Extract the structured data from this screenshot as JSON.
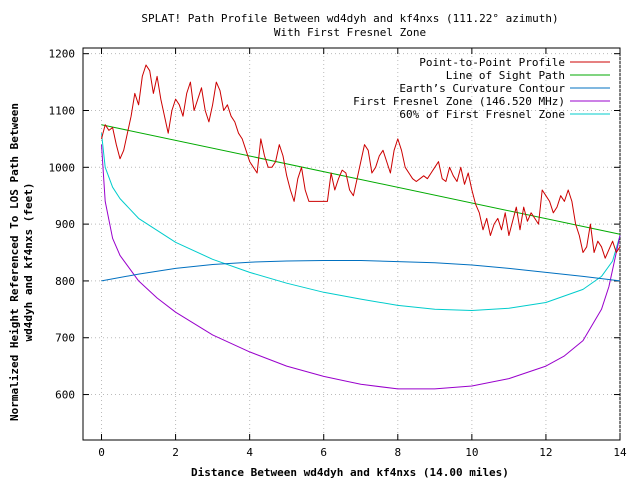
{
  "chart_data": {
    "type": "line",
    "title_line1": "SPLAT! Path Profile Between wd4dyh and kf4nxs (111.22° azimuth)",
    "title_line2": "With First Fresnel Zone",
    "xlabel": "Distance Between wd4dyh and kf4nxs (14.00 miles)",
    "ylabel_line1": "Normalized Height Referenced To LOS Path Between",
    "ylabel_line2": "wd4dyh and kf4nxs (feet)",
    "xlim": [
      -0.5,
      14
    ],
    "ylim": [
      520,
      1210
    ],
    "x_ticks": [
      0,
      2,
      4,
      6,
      8,
      10,
      12,
      14
    ],
    "x_tick_labels": [
      "0",
      "2",
      "4",
      "6",
      "8",
      "10",
      "12",
      "14"
    ],
    "y_ticks": [
      600,
      700,
      800,
      900,
      1000,
      1100,
      1200
    ],
    "y_tick_labels": [
      "600",
      "700",
      "800",
      "900",
      "1000",
      "1100",
      "1200"
    ],
    "grid": true,
    "legend_position": "top-right",
    "series": [
      {
        "name": "Point-to-Point Profile",
        "color": "#cc0000",
        "x": [
          0.0,
          0.1,
          0.2,
          0.3,
          0.4,
          0.5,
          0.6,
          0.7,
          0.8,
          0.9,
          1.0,
          1.1,
          1.2,
          1.3,
          1.4,
          1.5,
          1.6,
          1.7,
          1.8,
          1.9,
          2.0,
          2.1,
          2.2,
          2.3,
          2.4,
          2.5,
          2.6,
          2.7,
          2.8,
          2.9,
          3.0,
          3.1,
          3.2,
          3.3,
          3.4,
          3.5,
          3.6,
          3.7,
          3.8,
          3.9,
          4.0,
          4.1,
          4.2,
          4.3,
          4.4,
          4.5,
          4.6,
          4.7,
          4.8,
          4.9,
          5.0,
          5.1,
          5.2,
          5.3,
          5.4,
          5.5,
          5.6,
          5.7,
          5.8,
          5.9,
          6.0,
          6.1,
          6.2,
          6.3,
          6.4,
          6.5,
          6.6,
          6.7,
          6.8,
          6.9,
          7.0,
          7.1,
          7.2,
          7.3,
          7.4,
          7.5,
          7.6,
          7.7,
          7.8,
          7.9,
          8.0,
          8.1,
          8.2,
          8.3,
          8.4,
          8.5,
          8.6,
          8.7,
          8.8,
          8.9,
          9.0,
          9.1,
          9.2,
          9.3,
          9.4,
          9.5,
          9.6,
          9.7,
          9.8,
          9.9,
          10.0,
          10.1,
          10.2,
          10.3,
          10.4,
          10.5,
          10.6,
          10.7,
          10.8,
          10.9,
          11.0,
          11.1,
          11.2,
          11.3,
          11.4,
          11.5,
          11.6,
          11.7,
          11.8,
          11.9,
          12.0,
          12.1,
          12.2,
          12.3,
          12.4,
          12.5,
          12.6,
          12.7,
          12.8,
          12.9,
          13.0,
          13.1,
          13.2,
          13.3,
          13.4,
          13.5,
          13.6,
          13.7,
          13.8,
          13.9,
          14.0
        ],
        "y": [
          1050,
          1075,
          1065,
          1070,
          1040,
          1015,
          1030,
          1060,
          1090,
          1130,
          1110,
          1160,
          1180,
          1170,
          1130,
          1160,
          1120,
          1090,
          1060,
          1100,
          1120,
          1110,
          1090,
          1130,
          1150,
          1100,
          1120,
          1140,
          1100,
          1080,
          1110,
          1150,
          1135,
          1100,
          1110,
          1090,
          1080,
          1060,
          1050,
          1030,
          1010,
          1000,
          990,
          1050,
          1020,
          1000,
          1000,
          1010,
          1040,
          1020,
          985,
          960,
          940,
          980,
          1000,
          960,
          940,
          940,
          940,
          940,
          940,
          940,
          990,
          960,
          980,
          995,
          990,
          960,
          950,
          980,
          1010,
          1040,
          1030,
          990,
          1000,
          1020,
          1030,
          1010,
          990,
          1030,
          1050,
          1030,
          1000,
          990,
          980,
          975,
          980,
          985,
          980,
          990,
          1000,
          1010,
          980,
          975,
          1000,
          985,
          975,
          1000,
          970,
          990,
          960,
          935,
          920,
          890,
          910,
          880,
          900,
          910,
          890,
          920,
          880,
          905,
          930,
          890,
          930,
          905,
          920,
          910,
          900,
          960,
          950,
          940,
          920,
          930,
          950,
          940,
          960,
          940,
          900,
          880,
          850,
          860,
          900,
          850,
          870,
          860,
          840,
          855,
          870,
          850,
          860
        ],
        "values_note_omitted": false
      },
      {
        "name": "Line of Sight Path",
        "color": "#00aa00",
        "x": [
          0,
          14
        ],
        "y": [
          1075,
          882
        ]
      },
      {
        "name": "Earth’s Curvature Contour",
        "color": "#0070c0",
        "x": [
          0,
          1,
          2,
          3,
          4,
          5,
          6,
          7,
          8,
          9,
          10,
          11,
          12,
          13,
          14
        ],
        "y": [
          800,
          812,
          822,
          829,
          833,
          835,
          836,
          836,
          834,
          832,
          828,
          822,
          815,
          808,
          800
        ]
      },
      {
        "name": "First Fresnel Zone (146.520 MHz)",
        "color": "#9900cc",
        "x": [
          0,
          0.1,
          0.3,
          0.5,
          1,
          1.5,
          2,
          3,
          4,
          5,
          6,
          7,
          8,
          9,
          10,
          11,
          12,
          12.5,
          13,
          13.5,
          13.7,
          13.9,
          14
        ],
        "y": [
          1040,
          940,
          875,
          845,
          800,
          770,
          745,
          705,
          675,
          650,
          632,
          618,
          610,
          610,
          615,
          628,
          650,
          668,
          695,
          750,
          790,
          850,
          880
        ]
      },
      {
        "name": "60% of First Fresnel Zone",
        "color": "#00cccc",
        "x": [
          0,
          0.1,
          0.3,
          0.5,
          1,
          2,
          3,
          4,
          5,
          6,
          7,
          8,
          9,
          10,
          11,
          12,
          13,
          13.5,
          13.8,
          14
        ],
        "y": [
          1060,
          1000,
          965,
          945,
          910,
          868,
          838,
          815,
          796,
          780,
          768,
          757,
          750,
          748,
          752,
          762,
          785,
          808,
          835,
          880
        ]
      }
    ]
  }
}
